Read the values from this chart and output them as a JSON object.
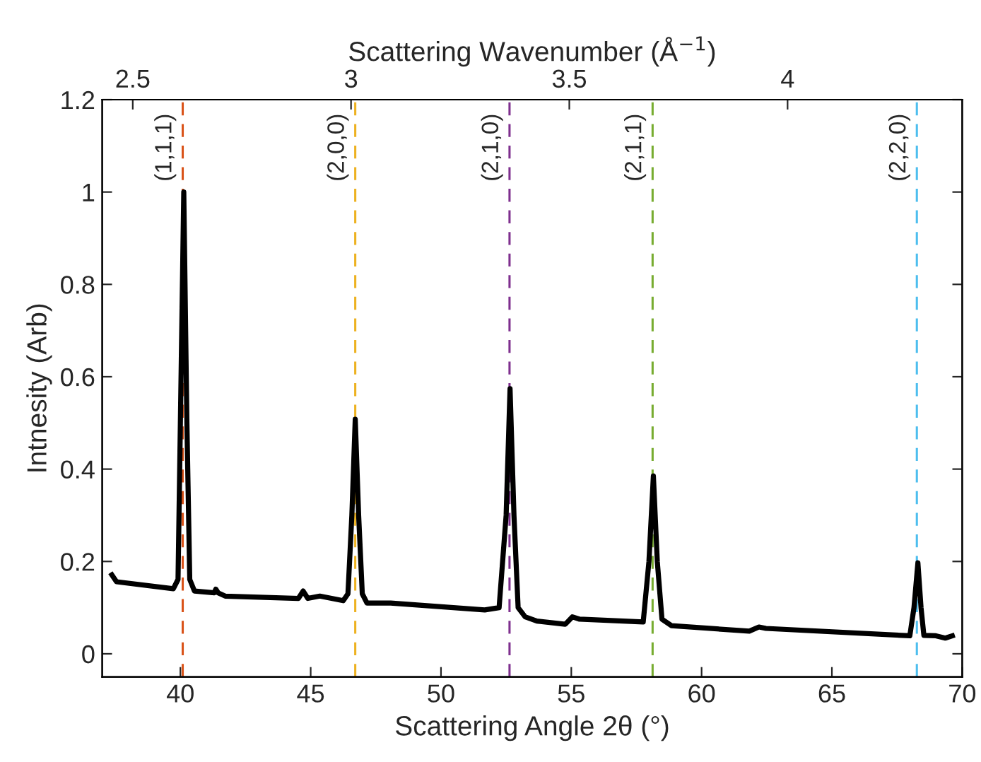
{
  "chart_data": {
    "type": "line",
    "xlabel": "Scattering Angle 2θ (°)",
    "ylabel": "Intnesity (Arb)",
    "x2label": "Scattering Wavenumber (Å$^{−1}$)",
    "xlim": [
      37,
      70
    ],
    "xticks": [
      40,
      45,
      50,
      55,
      60,
      65,
      70
    ],
    "ylim": [
      -0.05,
      1.2
    ],
    "yticks": [
      0,
      0.2,
      0.4,
      0.6,
      0.8,
      1,
      1.2
    ],
    "x2lim": [
      2.43,
      4.4
    ],
    "x2ticks": [
      2.5,
      3,
      3.5,
      4
    ],
    "grid": false,
    "legend": false,
    "marker": "none",
    "line_style": "solid",
    "series": [
      {
        "color": "#000000",
        "x": [
          37.37,
          37.55,
          39.73,
          39.91,
          40.0,
          40.13,
          40.25,
          40.36,
          40.54,
          41.3,
          41.36,
          41.45,
          41.72,
          44.53,
          44.71,
          44.89,
          45.35,
          46.25,
          46.43,
          46.58,
          46.71,
          46.84,
          46.98,
          47.16,
          48.07,
          51.68,
          52.23,
          52.5,
          52.65,
          52.8,
          52.96,
          53.23,
          53.68,
          54.77,
          55.04,
          55.32,
          57.76,
          57.98,
          58.15,
          58.3,
          58.48,
          58.84,
          61.83,
          62.2,
          62.47,
          67.99,
          68.15,
          68.3,
          68.42,
          68.53,
          68.99,
          69.35,
          69.62
        ],
        "values": [
          0.171,
          0.156,
          0.141,
          0.161,
          0.5,
          1.0,
          0.5,
          0.161,
          0.136,
          0.132,
          0.14,
          0.132,
          0.125,
          0.12,
          0.136,
          0.12,
          0.125,
          0.115,
          0.13,
          0.3,
          0.508,
          0.3,
          0.13,
          0.11,
          0.11,
          0.095,
          0.1,
          0.3,
          0.574,
          0.3,
          0.1,
          0.08,
          0.071,
          0.064,
          0.08,
          0.075,
          0.069,
          0.2,
          0.385,
          0.2,
          0.075,
          0.061,
          0.049,
          0.058,
          0.055,
          0.039,
          0.1,
          0.197,
          0.1,
          0.04,
          0.039,
          0.034,
          0.039
        ]
      }
    ],
    "ref_lines": [
      {
        "axis": "x",
        "value": 40.09,
        "label": "(1,1,1)",
        "color": "#d95319",
        "line_style": "dashed"
      },
      {
        "axis": "x",
        "value": 46.71,
        "label": "(2,0,0)",
        "color": "#edb120",
        "line_style": "dashed"
      },
      {
        "axis": "x",
        "value": 52.63,
        "label": "(2,1,0)",
        "color": "#7e2f8e",
        "line_style": "dashed"
      },
      {
        "axis": "x",
        "value": 58.12,
        "label": "(2,1,1)",
        "color": "#77ac30",
        "line_style": "dashed"
      },
      {
        "axis": "x",
        "value": 68.26,
        "label": "(2,2,0)",
        "color": "#4dbeee",
        "line_style": "dashed"
      }
    ]
  }
}
